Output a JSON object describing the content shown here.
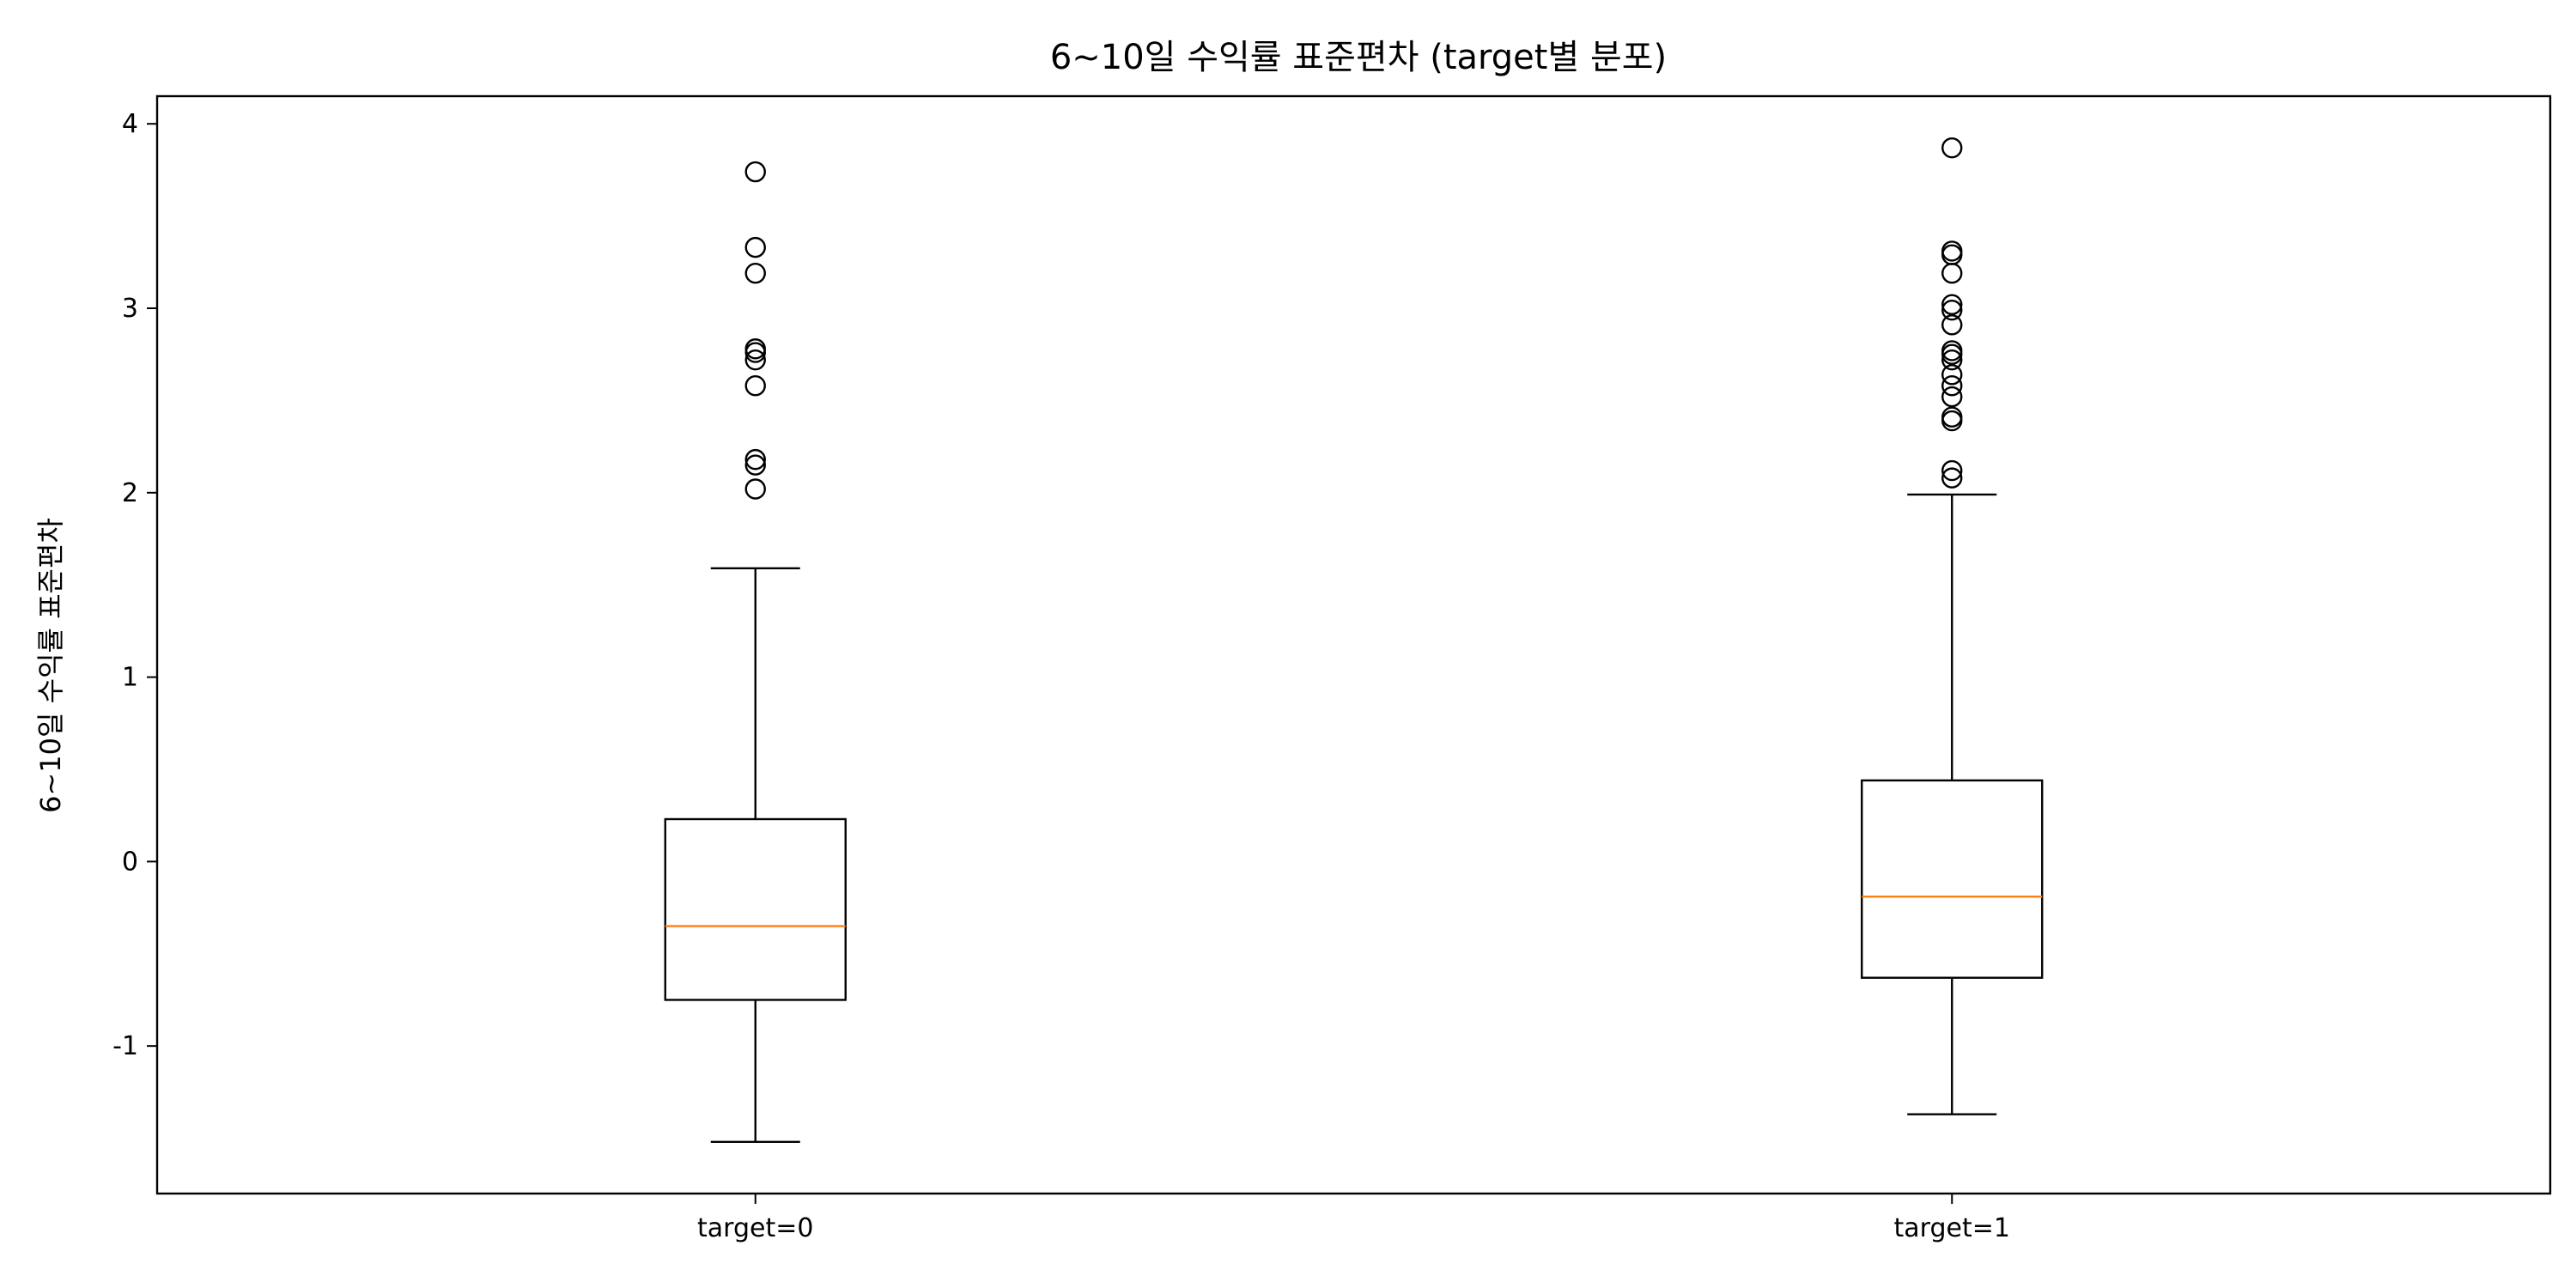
{
  "chart_data": {
    "type": "box",
    "title": "6~10일 수익률 표준편차 (target별 분포)",
    "xlabel": "",
    "ylabel": "6~10일 수익률 표준편차",
    "categories": [
      "target=0",
      "target=1"
    ],
    "ylim": [
      -1.8,
      4.15
    ],
    "yticks": [
      -1,
      0,
      1,
      2,
      3,
      4
    ],
    "grid": false,
    "median_color": "#ff7f0e",
    "box_color": "#000000",
    "boxes": [
      {
        "name": "target=0",
        "whisker_low": -1.52,
        "q1": -0.75,
        "median": -0.35,
        "q3": 0.23,
        "whisker_high": 1.59,
        "outliers": [
          2.02,
          2.15,
          2.18,
          2.58,
          2.72,
          2.76,
          2.78,
          3.19,
          3.33,
          3.74
        ]
      },
      {
        "name": "target=1",
        "whisker_low": -1.37,
        "q1": -0.63,
        "median": -0.19,
        "q3": 0.44,
        "whisker_high": 1.99,
        "outliers": [
          2.08,
          2.12,
          2.39,
          2.41,
          2.52,
          2.58,
          2.64,
          2.72,
          2.75,
          2.77,
          2.91,
          2.99,
          3.02,
          3.19,
          3.29,
          3.31,
          3.87
        ]
      }
    ]
  }
}
